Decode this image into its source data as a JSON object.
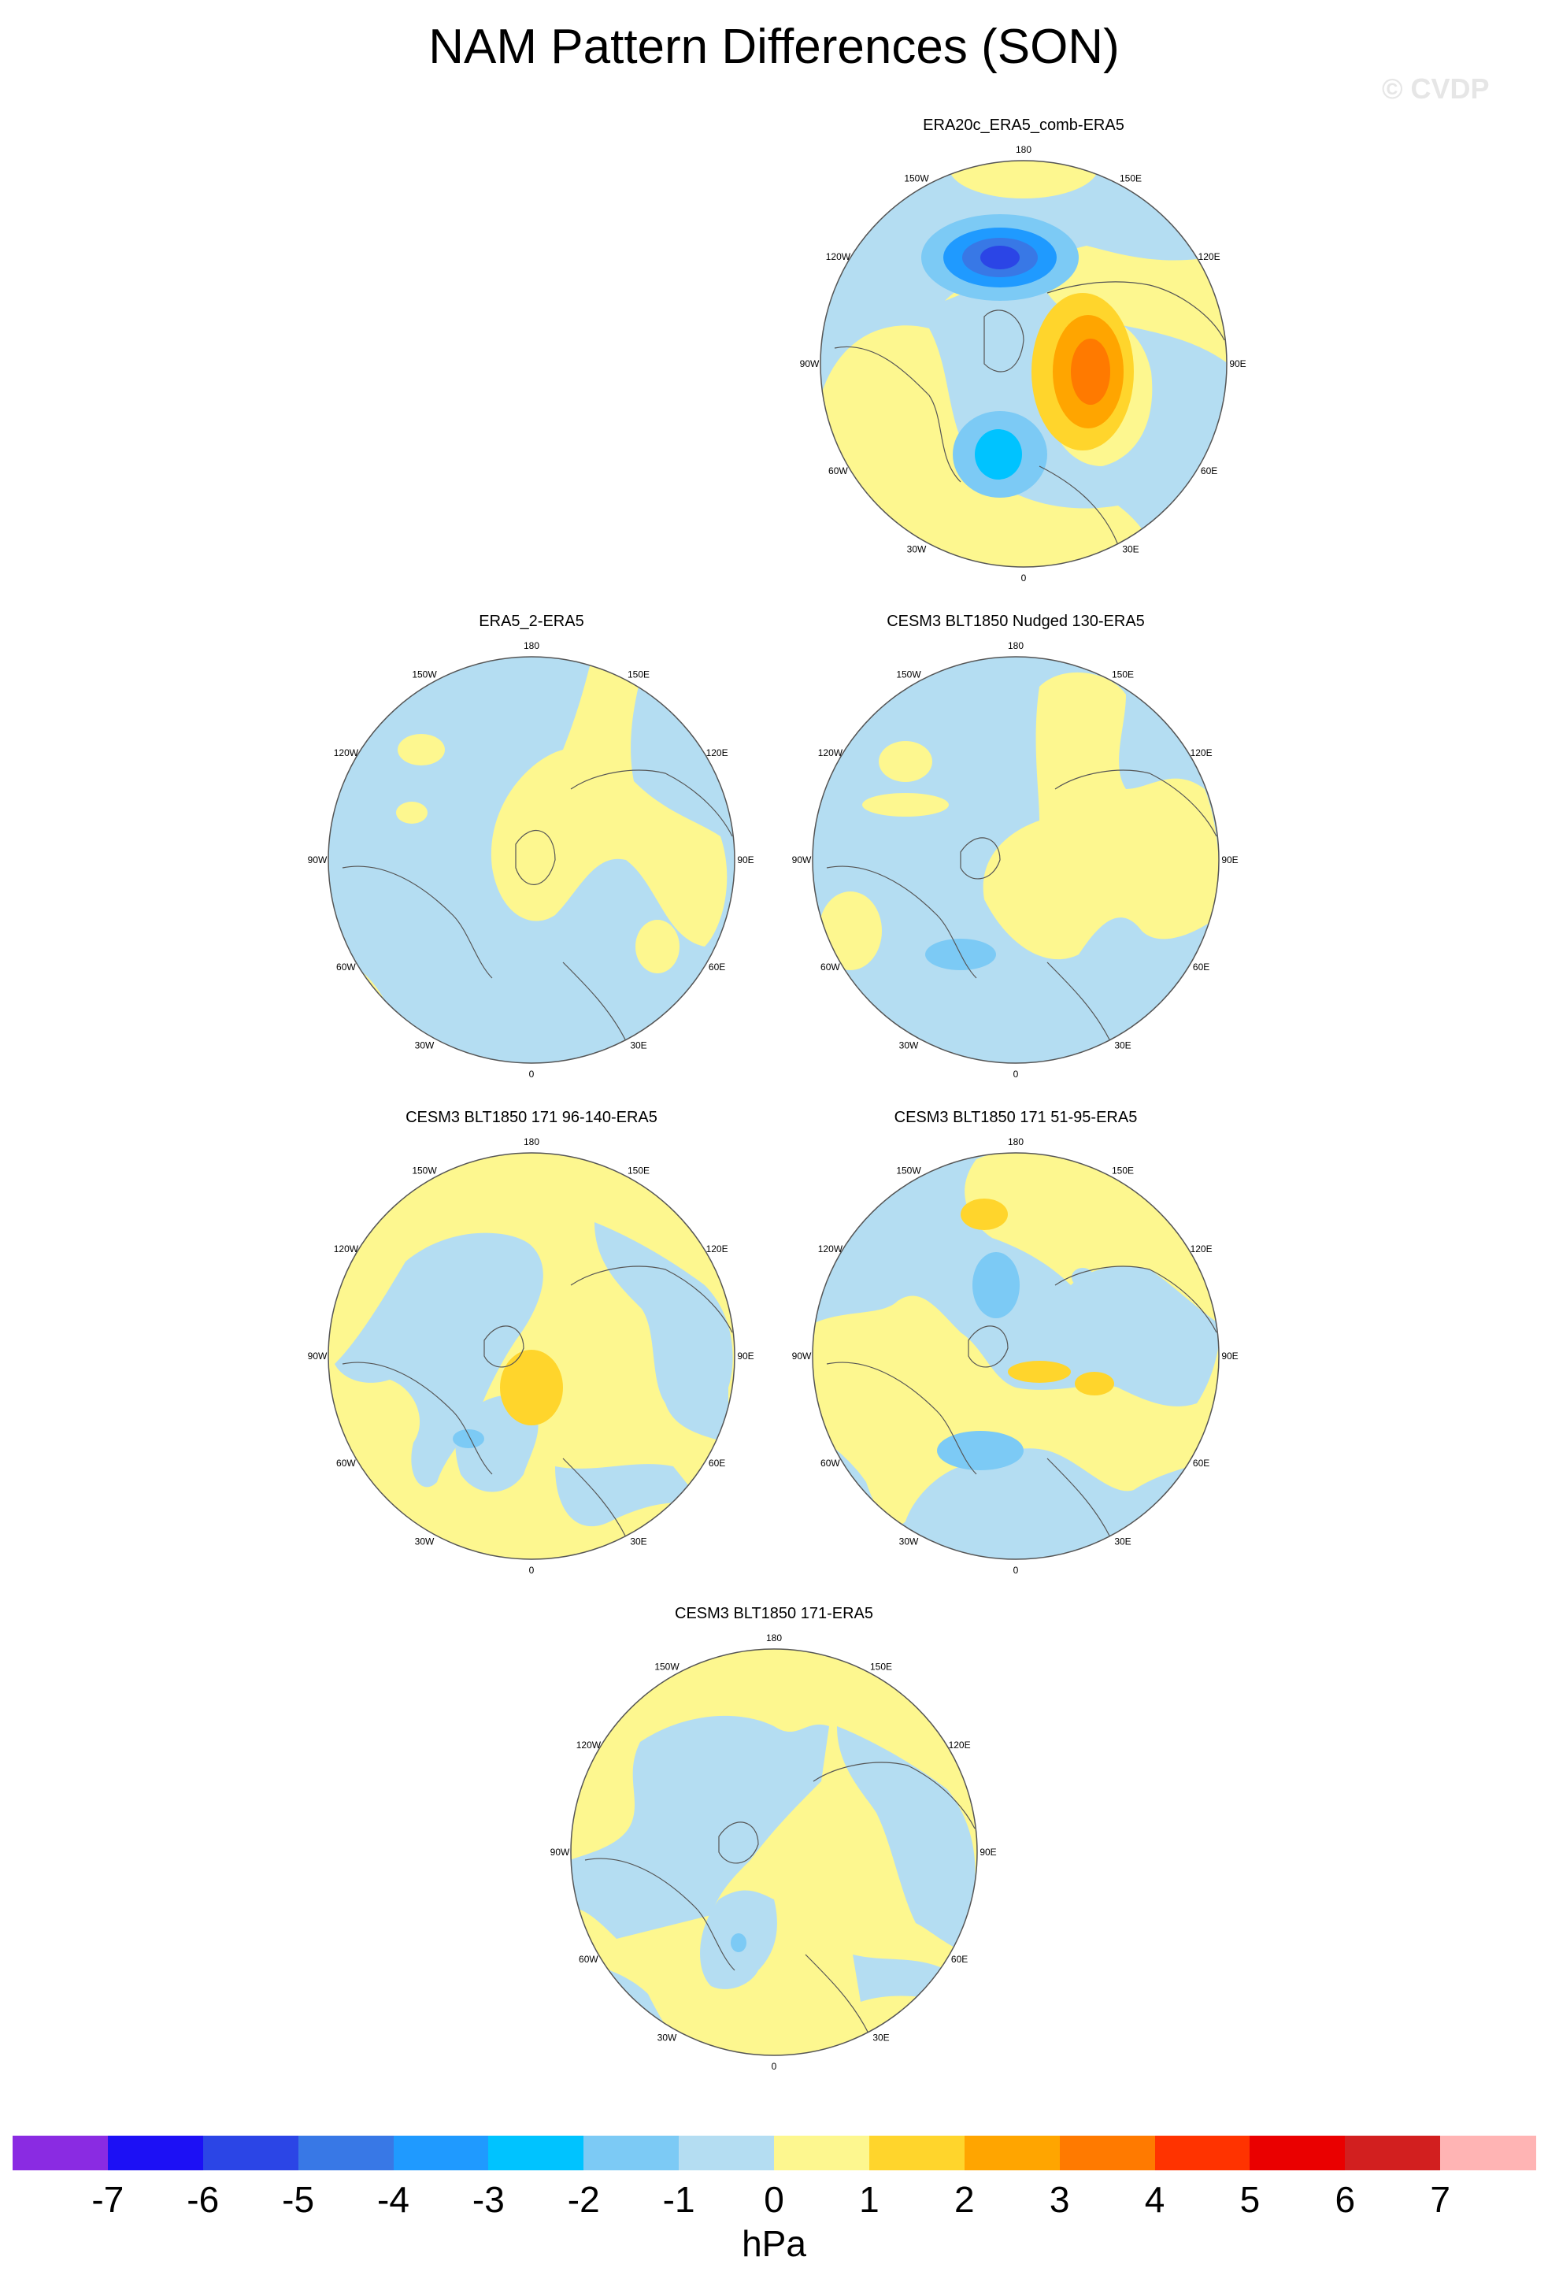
{
  "title": "NAM Pattern Differences (SON)",
  "watermark": "© CVDP",
  "panels": [
    {
      "title": "ERA20c_ERA5_comb-ERA5"
    },
    {
      "title": "ERA5_2-ERA5"
    },
    {
      "title": "CESM3 BLT1850 Nudged 130-ERA5"
    },
    {
      "title": "CESM3 BLT1850 171 96-140-ERA5"
    },
    {
      "title": "CESM3 BLT1850 171 51-95-ERA5"
    },
    {
      "title": "CESM3 BLT1850 171-ERA5"
    }
  ],
  "longitude_labels": [
    "180",
    "150E",
    "120E",
    "90E",
    "60E",
    "30E",
    "0",
    "30W",
    "60W",
    "90W",
    "120W",
    "150W"
  ],
  "colorbar": {
    "units": "hPa",
    "tick_labels": [
      "-7",
      "-6",
      "-5",
      "-4",
      "-3",
      "-2",
      "-1",
      "0",
      "1",
      "2",
      "3",
      "4",
      "5",
      "6",
      "7"
    ],
    "colors": [
      "#8a2be2",
      "#1c10f5",
      "#2b45e6",
      "#3878e6",
      "#1f9aff",
      "#00c3ff",
      "#7ccaf5",
      "#b4ddf2",
      "#fdf78f",
      "#ffd52c",
      "#ffa500",
      "#ff7a00",
      "#ff3300",
      "#ea0000",
      "#d21f1f",
      "#ffb4b4"
    ]
  },
  "palette": {
    "ocean_light_blue": "#b4ddf2",
    "light_yellow": "#fdf78f",
    "coast": "#555555"
  }
}
